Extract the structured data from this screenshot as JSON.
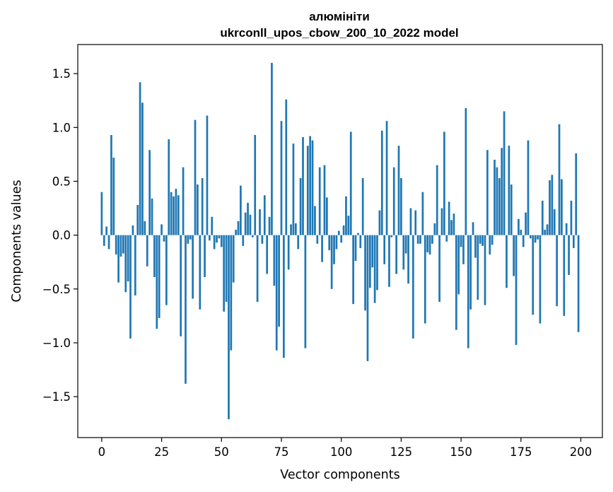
{
  "chart_data": {
    "type": "bar",
    "title": "алюмініти",
    "subtitle": "ukrconll_upos_cbow_200_10_2022 model",
    "xlabel": "Vector components",
    "ylabel": "Components values",
    "xlim": [
      -10,
      209
    ],
    "ylim": [
      -1.88,
      1.77
    ],
    "xticks": [
      0,
      25,
      50,
      75,
      100,
      125,
      150,
      175,
      200
    ],
    "xtick_labels": [
      "0",
      "25",
      "50",
      "75",
      "100",
      "125",
      "150",
      "175",
      "200"
    ],
    "yticks": [
      -1.5,
      -1.0,
      -0.5,
      0.0,
      0.5,
      1.0,
      1.5
    ],
    "ytick_labels": [
      "−1.5",
      "−1.0",
      "−0.5",
      "0.0",
      "0.5",
      "1.0",
      "1.5"
    ],
    "bar_color": "#1f77b4",
    "grid": false,
    "x": [
      0,
      1,
      2,
      3,
      4,
      5,
      6,
      7,
      8,
      9,
      10,
      11,
      12,
      13,
      14,
      15,
      16,
      17,
      18,
      19,
      20,
      21,
      22,
      23,
      24,
      25,
      26,
      27,
      28,
      29,
      30,
      31,
      32,
      33,
      34,
      35,
      36,
      37,
      38,
      39,
      40,
      41,
      42,
      43,
      44,
      45,
      46,
      47,
      48,
      49,
      50,
      51,
      52,
      53,
      54,
      55,
      56,
      57,
      58,
      59,
      60,
      61,
      62,
      63,
      64,
      65,
      66,
      67,
      68,
      69,
      70,
      71,
      72,
      73,
      74,
      75,
      76,
      77,
      78,
      79,
      80,
      81,
      82,
      83,
      84,
      85,
      86,
      87,
      88,
      89,
      90,
      91,
      92,
      93,
      94,
      95,
      96,
      97,
      98,
      99,
      100,
      101,
      102,
      103,
      104,
      105,
      106,
      107,
      108,
      109,
      110,
      111,
      112,
      113,
      114,
      115,
      116,
      117,
      118,
      119,
      120,
      121,
      122,
      123,
      124,
      125,
      126,
      127,
      128,
      129,
      130,
      131,
      132,
      133,
      134,
      135,
      136,
      137,
      138,
      139,
      140,
      141,
      142,
      143,
      144,
      145,
      146,
      147,
      148,
      149,
      150,
      151,
      152,
      153,
      154,
      155,
      156,
      157,
      158,
      159,
      160,
      161,
      162,
      163,
      164,
      165,
      166,
      167,
      168,
      169,
      170,
      171,
      172,
      173,
      174,
      175,
      176,
      177,
      178,
      179,
      180,
      181,
      182,
      183,
      184,
      185,
      186,
      187,
      188,
      189,
      190,
      191,
      192,
      193,
      194,
      195,
      196,
      197,
      198,
      199
    ],
    "values": [
      0.4,
      -0.1,
      0.08,
      -0.13,
      0.93,
      0.72,
      -0.18,
      -0.44,
      -0.2,
      -0.17,
      -0.53,
      -0.43,
      -0.96,
      0.09,
      -0.56,
      0.28,
      1.42,
      1.23,
      0.13,
      -0.29,
      0.79,
      0.34,
      -0.39,
      -0.87,
      -0.77,
      0.1,
      -0.06,
      -0.65,
      0.89,
      0.4,
      0.36,
      0.43,
      0.37,
      -0.94,
      0.63,
      -1.38,
      -0.08,
      -0.04,
      -0.59,
      1.07,
      0.47,
      -0.69,
      0.53,
      -0.39,
      1.11,
      -0.05,
      0.17,
      -0.13,
      -0.07,
      -0.03,
      -0.11,
      -0.71,
      -0.62,
      -1.71,
      -1.07,
      -0.44,
      0.05,
      0.13,
      0.46,
      -0.1,
      0.21,
      0.3,
      0.19,
      -0.02,
      0.93,
      -0.62,
      0.24,
      -0.08,
      0.37,
      -0.36,
      0.17,
      1.6,
      -0.47,
      -1.07,
      -0.85,
      1.06,
      -1.14,
      1.26,
      -0.32,
      0.1,
      0.85,
      0.11,
      -0.13,
      0.53,
      0.91,
      -1.05,
      0.83,
      0.92,
      0.88,
      0.27,
      -0.08,
      0.63,
      -0.25,
      0.65,
      0.35,
      -0.14,
      -0.5,
      -0.27,
      -0.13,
      0.04,
      -0.07,
      0.09,
      0.36,
      0.18,
      0.96,
      -0.64,
      -0.24,
      0.02,
      -0.12,
      0.53,
      -0.7,
      -1.17,
      -0.49,
      -0.3,
      -0.63,
      -0.51,
      0.23,
      0.97,
      -0.27,
      1.06,
      -0.48,
      -0.02,
      0.63,
      -0.36,
      0.83,
      0.53,
      -0.32,
      -0.17,
      -0.45,
      0.25,
      -0.96,
      0.23,
      -0.08,
      -0.08,
      0.4,
      -0.82,
      -0.16,
      -0.18,
      -0.08,
      0.11,
      0.65,
      -0.62,
      0.25,
      0.96,
      -0.06,
      0.31,
      0.14,
      0.2,
      -0.88,
      -0.55,
      -0.11,
      -0.27,
      1.18,
      -1.05,
      -0.69,
      0.12,
      -0.21,
      -0.6,
      -0.08,
      -0.1,
      -0.65,
      0.79,
      -0.18,
      -0.09,
      0.7,
      0.63,
      0.53,
      0.81,
      1.15,
      -0.49,
      0.83,
      0.47,
      -0.38,
      -1.02,
      0.15,
      0.05,
      -0.11,
      0.21,
      0.88,
      -0.03,
      -0.74,
      -0.07,
      -0.04,
      -0.82,
      0.32,
      0.05,
      0.1,
      0.51,
      0.56,
      0.24,
      -0.66,
      1.03,
      0.52,
      -0.75,
      0.11,
      -0.37,
      0.32,
      -0.12,
      0.76,
      -0.9
    ]
  }
}
